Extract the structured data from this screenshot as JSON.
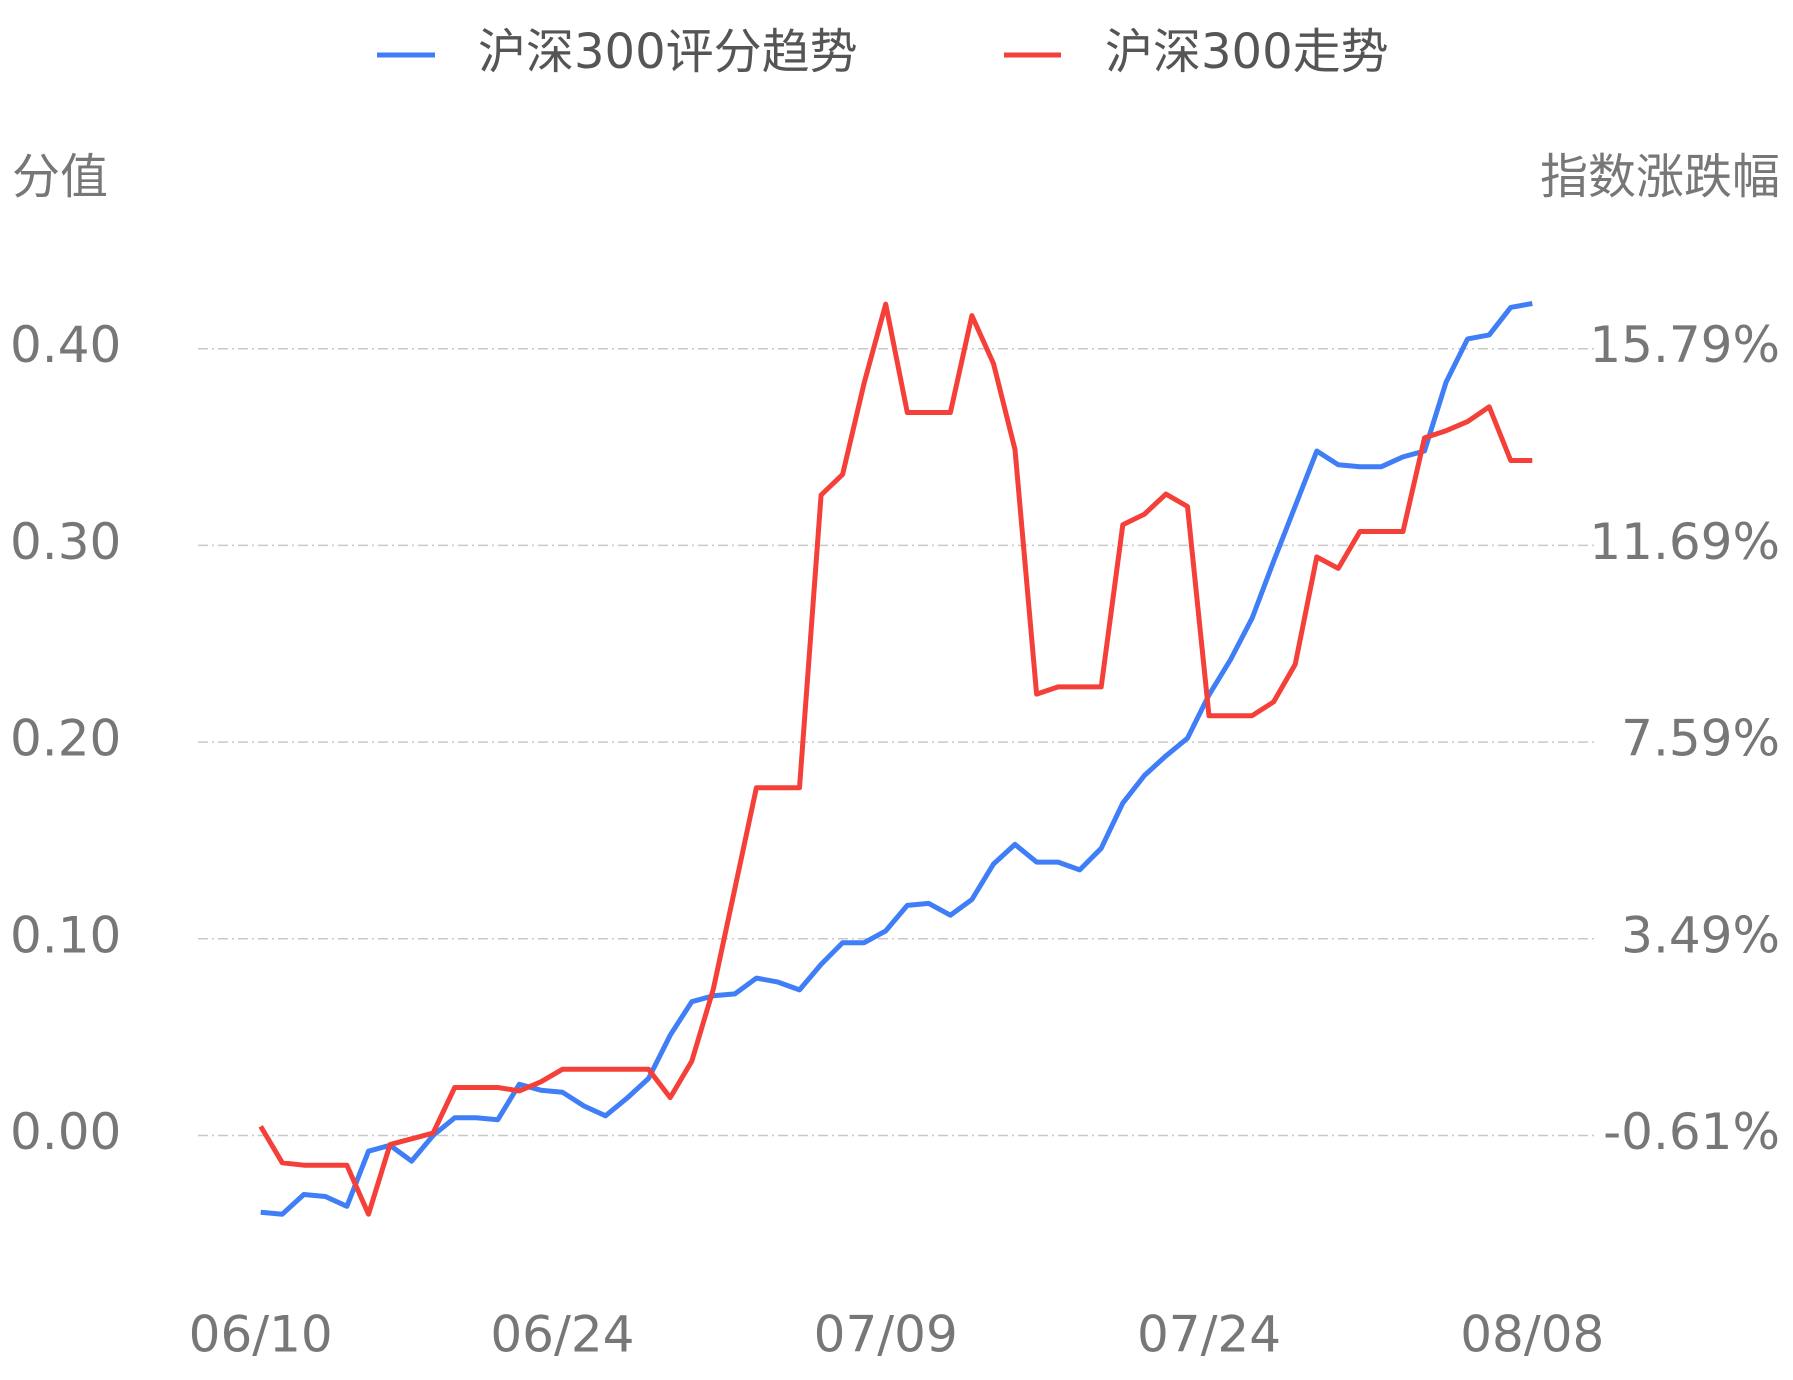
{
  "chart_data": {
    "type": "line",
    "y_label": "分值",
    "y2_label": "指数涨跌幅",
    "categories": [
      "06/10",
      null,
      null,
      null,
      null,
      null,
      null,
      null,
      null,
      null,
      null,
      null,
      null,
      null,
      "06/24",
      null,
      null,
      null,
      null,
      null,
      null,
      null,
      null,
      null,
      null,
      null,
      null,
      null,
      null,
      "07/09",
      null,
      null,
      null,
      null,
      null,
      null,
      null,
      null,
      null,
      null,
      null,
      null,
      null,
      null,
      "07/24",
      null,
      null,
      null,
      null,
      null,
      null,
      null,
      null,
      null,
      null,
      null,
      null,
      null,
      null,
      "08/08"
    ],
    "ylim": [
      -0.06,
      0.43
    ],
    "yticks": [
      {
        "value": 0,
        "label": "0.00"
      },
      {
        "value": 0.1,
        "label": "0.10"
      },
      {
        "value": 0.2,
        "label": "0.20"
      },
      {
        "value": 0.3,
        "label": "0.30"
      },
      {
        "value": 0.4,
        "label": "0.40"
      }
    ],
    "y2lim": [
      -3.07,
      17.02
    ],
    "y2ticks": [
      {
        "value": -0.61,
        "label": "-0.61%"
      },
      {
        "value": 3.49,
        "label": "3.49%"
      },
      {
        "value": 7.59,
        "label": "7.59%"
      },
      {
        "value": 11.69,
        "label": "11.69%"
      },
      {
        "value": 15.79,
        "label": "15.79%"
      }
    ],
    "grid": true,
    "series": [
      {
        "name": "沪深300评分趋势",
        "color": "#3f7ef6",
        "axis": "y",
        "values": [
          -0.039,
          -0.04,
          -0.03,
          -0.031,
          -0.036,
          -0.008,
          -0.005,
          -0.013,
          0.0,
          0.009,
          0.009,
          0.008,
          0.026,
          0.023,
          0.022,
          0.015,
          0.01,
          0.019,
          0.029,
          0.051,
          0.068,
          0.071,
          0.072,
          0.08,
          0.078,
          0.074,
          0.087,
          0.098,
          0.098,
          0.104,
          0.117,
          0.118,
          0.112,
          0.12,
          0.138,
          0.148,
          0.139,
          0.139,
          0.135,
          0.146,
          0.169,
          0.183,
          0.193,
          0.202,
          0.224,
          0.242,
          0.263,
          0.292,
          0.32,
          0.348,
          0.341,
          0.34,
          0.34,
          0.345,
          0.348,
          0.383,
          0.405,
          0.407,
          0.421,
          0.423
        ]
      },
      {
        "name": "沪深300走势",
        "color": "#f5403a",
        "axis": "y2",
        "values": [
          -0.42,
          -1.18,
          -1.23,
          -1.23,
          -1.23,
          -2.25,
          -0.8,
          -0.68,
          -0.56,
          0.39,
          0.39,
          0.39,
          0.32,
          0.51,
          0.77,
          0.77,
          0.77,
          0.77,
          0.77,
          0.18,
          0.94,
          2.44,
          4.54,
          6.64,
          6.64,
          6.64,
          12.74,
          13.17,
          15.08,
          16.72,
          14.46,
          14.46,
          14.46,
          16.48,
          15.48,
          13.69,
          8.59,
          8.74,
          8.74,
          8.74,
          12.12,
          12.34,
          12.76,
          12.5,
          8.14,
          8.14,
          8.14,
          8.43,
          9.21,
          11.45,
          11.21,
          11.98,
          11.98,
          11.98,
          13.93,
          14.08,
          14.27,
          14.58,
          13.46,
          13.46
        ]
      }
    ]
  }
}
